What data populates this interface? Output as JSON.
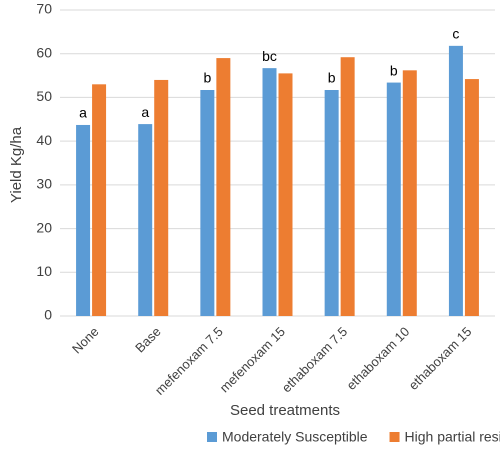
{
  "chart_data": {
    "type": "bar",
    "x_label": "Seed treatments",
    "y_label": "Yield Kg/ha",
    "categories": [
      "None",
      "Base",
      "mefenoxam 7.5",
      "mefenoxam 15",
      "ethaboxam 7.5",
      "ethaboxam 10",
      "ethaboxam 15"
    ],
    "series": [
      {
        "name": "Moderately Susceptible",
        "color": "#5b9bd5",
        "values": [
          43.7,
          43.9,
          51.7,
          56.7,
          51.7,
          53.4,
          61.8
        ]
      },
      {
        "name": "High partial resistance",
        "color": "#ed7d31",
        "values": [
          53,
          54,
          59,
          55.5,
          59.2,
          56.2,
          54.2
        ]
      }
    ],
    "annotations": [
      "a",
      "a",
      "b",
      "bc",
      "b",
      "b",
      "c"
    ],
    "ylim": [
      0,
      70
    ],
    "yticks": [
      0,
      10,
      20,
      30,
      40,
      50,
      60,
      70
    ],
    "grid": true,
    "legend": "bottom"
  }
}
